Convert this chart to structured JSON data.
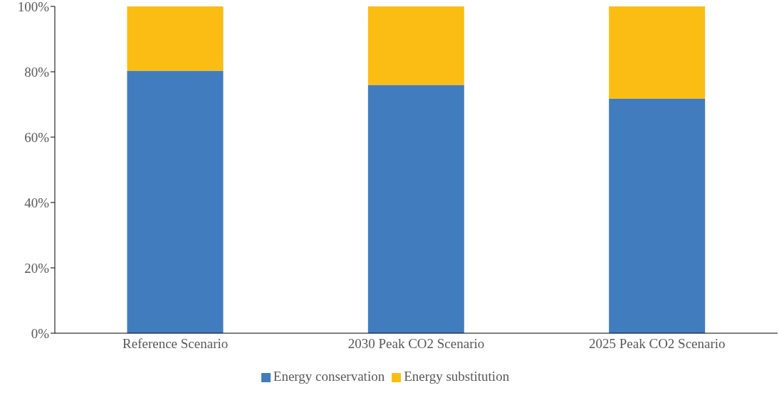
{
  "chart_data": {
    "type": "bar",
    "stacked": true,
    "categories": [
      "Reference Scenario",
      "2030 Peak CO2 Scenario",
      "2025 Peak CO2 Scenario"
    ],
    "series": [
      {
        "name": "Energy conservation",
        "color": "#417dbe",
        "values": [
          80.3,
          76.0,
          71.8
        ]
      },
      {
        "name": "Energy substitution",
        "color": "#fbbd13",
        "values": [
          19.7,
          24.0,
          28.2
        ]
      }
    ],
    "ylim": [
      0,
      100
    ],
    "yticks": [
      {
        "value": 0,
        "label": "0%"
      },
      {
        "value": 20,
        "label": "20%"
      },
      {
        "value": 40,
        "label": "40%"
      },
      {
        "value": 60,
        "label": "60%"
      },
      {
        "value": 80,
        "label": "80%"
      },
      {
        "value": 100,
        "label": "100%"
      }
    ],
    "grid": false,
    "legend": "bottom"
  }
}
